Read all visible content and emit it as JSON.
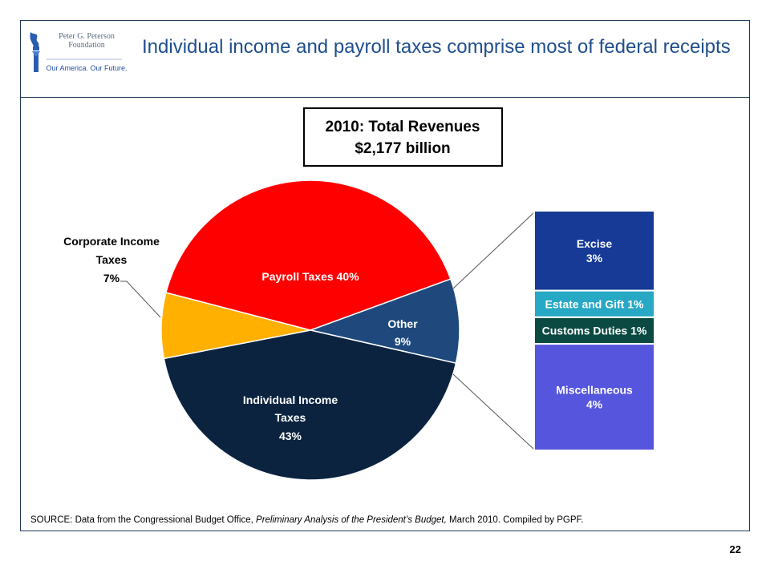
{
  "logo": {
    "name": "Peter G. Peterson\nFoundation",
    "tagline": "Our America. Our Future."
  },
  "slide_title": "Individual income and payroll taxes comprise most of federal receipts",
  "chart_data": {
    "type": "pie",
    "title_line1": "2010: Total Revenues",
    "title_line2": "$2,177 billion",
    "slices": [
      {
        "name": "Payroll Taxes",
        "label": "Payroll Taxes 40%",
        "value": 40,
        "color": "#ff0000",
        "text_color": "#ffffff"
      },
      {
        "name": "Other",
        "label": "Other 9%",
        "value": 9,
        "color": "#1f497d",
        "text_color": "#ffffff"
      },
      {
        "name": "Individual Income Taxes",
        "label": "Individual Income Taxes 43%",
        "value": 43,
        "color": "#0c2340",
        "text_color": "#ffffff"
      },
      {
        "name": "Corporate Income Taxes",
        "label": "Corporate Income Taxes 7%",
        "value": 7,
        "color": "#ffb000",
        "text_color": "#000000"
      }
    ],
    "labels": {
      "payroll": "Payroll Taxes 40%",
      "other_1": "Other",
      "other_2": "9%",
      "individual_1": "Individual Income",
      "individual_2": "Taxes",
      "individual_3": "43%",
      "corporate_1": "Corporate Income",
      "corporate_2": "Taxes",
      "corporate_3": "7%"
    },
    "other_breakdown": [
      {
        "name": "Excise",
        "label_1": "Excise",
        "label_2": "3%",
        "value": 3,
        "color": "#163a96",
        "text_color": "#ffffff"
      },
      {
        "name": "Estate and Gift",
        "label_1": "Estate and Gift 1%",
        "label_2": "",
        "value": 1,
        "color": "#27a8c4",
        "text_color": "#ffffff"
      },
      {
        "name": "Customs Duties",
        "label_1": "Customs Duties 1%",
        "label_2": "",
        "value": 1,
        "color": "#0b4a42",
        "text_color": "#ffffff"
      },
      {
        "name": "Miscellaneous",
        "label_1": "Miscellaneous",
        "label_2": "4%",
        "value": 4,
        "color": "#5555dd",
        "text_color": "#ffffff"
      }
    ]
  },
  "source": {
    "prefix": "SOURCE: Data from the Congressional Budget Office, ",
    "italic": "Preliminary Analysis of the President’s Budget,",
    "suffix": " March 2010. Compiled by PGPF."
  },
  "page_number": "22"
}
